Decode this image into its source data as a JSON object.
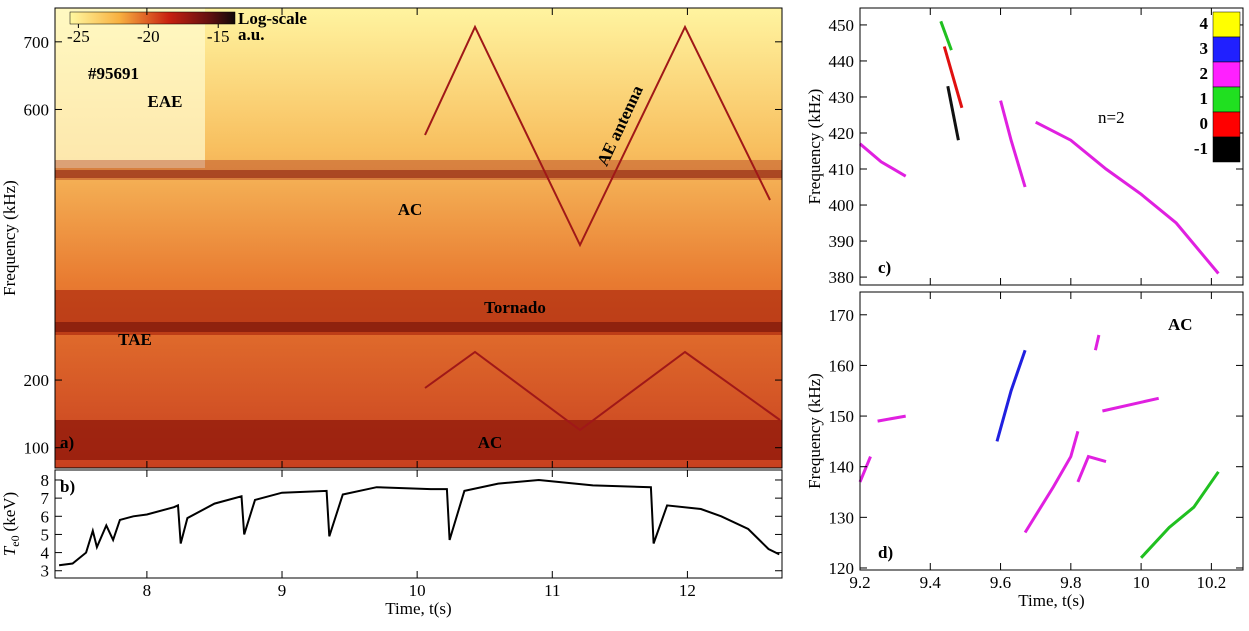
{
  "chart_data": [
    {
      "type": "spectrogram",
      "panel_label": "a)",
      "shot": "#95691",
      "y_label": "Frequency (kHz)",
      "xlim": [
        7.32,
        12.7
      ],
      "ylim": [
        70,
        750
      ],
      "yticks": [
        100,
        200,
        600,
        700
      ],
      "colorbar": {
        "lim": [
          -25.6,
          -13.8
        ],
        "ticks": [
          -25,
          -20,
          -15
        ],
        "label": [
          "Log-scale",
          "a.u."
        ]
      },
      "annotations": [
        "EAE",
        "AC",
        "Tornado",
        "TAE",
        "AC",
        "AE antenna"
      ]
    },
    {
      "type": "line",
      "panel_label": "b)",
      "y_label": [
        "T",
        "e0",
        "(keV)"
      ],
      "x_label": "Time, t(s)",
      "xlim": [
        7.32,
        12.7
      ],
      "ylim": [
        2.6,
        8.55
      ],
      "xticks": [
        8,
        9,
        10,
        11,
        12
      ],
      "yticks": [
        3,
        4,
        5,
        6,
        7,
        8
      ],
      "color": "#000000",
      "x": [
        7.35,
        7.45,
        7.55,
        7.6,
        7.63,
        7.7,
        7.75,
        7.8,
        7.9,
        8.0,
        8.2,
        8.23,
        8.25,
        8.3,
        8.5,
        8.7,
        8.72,
        8.8,
        9.0,
        9.33,
        9.35,
        9.45,
        9.7,
        10.1,
        10.22,
        10.24,
        10.35,
        10.6,
        10.9,
        11.3,
        11.73,
        11.75,
        11.85,
        12.1,
        12.25,
        12.45,
        12.6,
        12.68
      ],
      "values": [
        3.3,
        3.4,
        4.0,
        5.2,
        4.3,
        5.5,
        4.7,
        5.8,
        6.0,
        6.1,
        6.5,
        6.6,
        4.5,
        5.9,
        6.7,
        7.1,
        5.0,
        6.9,
        7.3,
        7.4,
        4.9,
        7.2,
        7.6,
        7.5,
        7.5,
        4.7,
        7.4,
        7.8,
        8.0,
        7.7,
        7.6,
        4.5,
        6.6,
        6.4,
        6.0,
        5.3,
        4.2,
        3.9
      ]
    },
    {
      "type": "line",
      "panel_label": "c)",
      "y_label": "Frequency (kHz)",
      "xlim": [
        9.2,
        10.29
      ],
      "ylim": [
        377.8,
        454.7
      ],
      "yticks": [
        380,
        390,
        400,
        410,
        420,
        430,
        440,
        450
      ],
      "annotations": [
        "n=2"
      ],
      "colorbar": {
        "values": [
          4,
          3,
          2,
          1,
          0,
          -1
        ],
        "colors": [
          "#ffff00",
          "#2020ff",
          "#ff20ff",
          "#20e020",
          "#ff0000",
          "#000000"
        ]
      },
      "series": [
        {
          "color": "#e020e0",
          "x": [
            9.2,
            9.26,
            9.33,
            null,
            9.6,
            9.63,
            9.67,
            null,
            9.7,
            9.8,
            9.9,
            10.0,
            10.1,
            10.22
          ],
          "values": [
            417,
            412,
            408,
            null,
            429,
            418,
            405,
            null,
            423,
            418,
            410,
            403,
            395,
            381
          ]
        },
        {
          "color": "#111111",
          "x": [
            9.45,
            9.48
          ],
          "values": [
            433,
            418
          ]
        },
        {
          "color": "#e01010",
          "x": [
            9.44,
            9.49
          ],
          "values": [
            444,
            427
          ]
        },
        {
          "color": "#20c020",
          "x": [
            9.43,
            9.46
          ],
          "values": [
            451,
            443
          ]
        }
      ]
    },
    {
      "type": "line",
      "panel_label": "d)",
      "y_label": "Frequency (kHz)",
      "x_label": "Time, t(s)",
      "xlim": [
        9.2,
        10.29
      ],
      "ylim": [
        119.6,
        174.5
      ],
      "xticks": [
        9.2,
        9.4,
        9.6,
        9.8,
        10,
        10.2
      ],
      "yticks": [
        120,
        130,
        140,
        150,
        160,
        170
      ],
      "annotations": [
        "AC"
      ],
      "series": [
        {
          "color": "#e020e0",
          "x": [
            9.2,
            9.23,
            null,
            9.25,
            9.33,
            null,
            9.67,
            9.75,
            9.8,
            9.82,
            null,
            9.82,
            9.85,
            9.9,
            null,
            9.87,
            9.88,
            null,
            9.89,
            10.05
          ],
          "values": [
            137,
            142,
            null,
            149,
            150,
            null,
            127,
            136,
            142,
            147,
            null,
            137,
            142,
            141,
            null,
            163,
            166,
            null,
            151,
            153.5
          ]
        },
        {
          "color": "#2020e0",
          "x": [
            9.59,
            9.63,
            9.67
          ],
          "values": [
            145,
            155,
            163
          ]
        },
        {
          "color": "#20c020",
          "x": [
            10,
            10.08,
            10.15,
            10.22
          ],
          "values": [
            122,
            128,
            132,
            139
          ]
        }
      ]
    }
  ]
}
